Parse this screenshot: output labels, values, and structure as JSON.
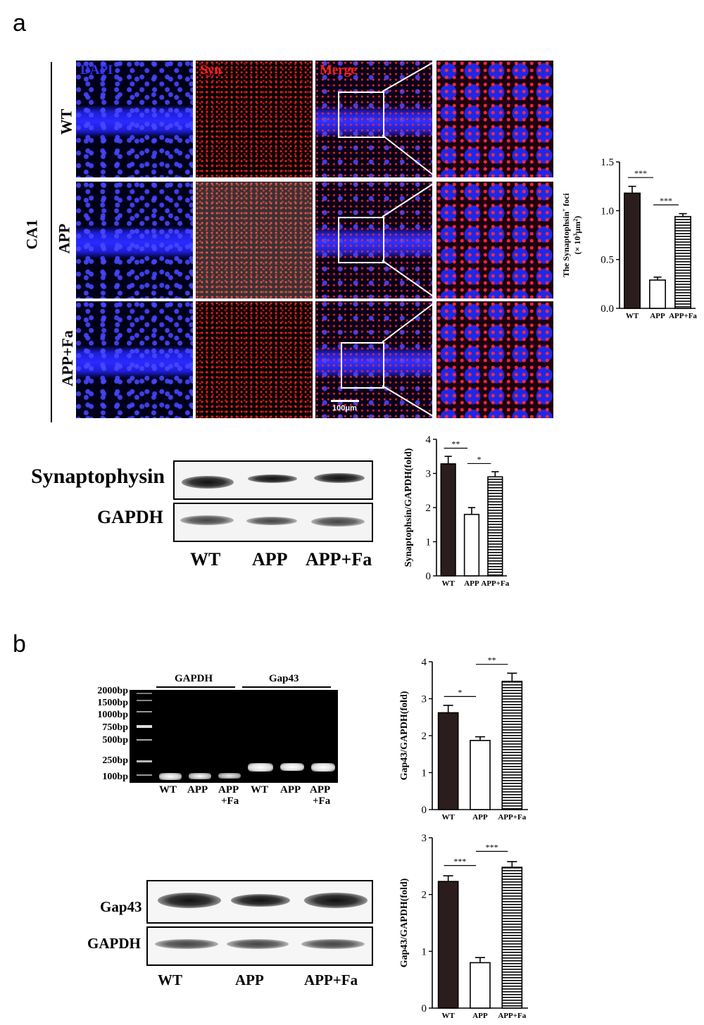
{
  "panel_a": {
    "letter": "a",
    "region": "CA1",
    "columns": [
      "DAPI",
      "Syn",
      "Merge"
    ],
    "rows": [
      "WT",
      "APP",
      "APP+Fa"
    ],
    "scale_bar": "100μm",
    "colors": {
      "dapi": "#3333ff",
      "syn": "#ff2020",
      "merge": "#ff2020"
    },
    "blot": {
      "rows": [
        "Synaptophysin",
        "GAPDH"
      ],
      "lanes": [
        "WT",
        "APP",
        "APP+Fa"
      ]
    }
  },
  "panel_b": {
    "letter": "b",
    "gel": {
      "groups": [
        "GAPDH",
        "Gap43"
      ],
      "ladder": [
        "2000bp",
        "1500bp",
        "1000bp",
        "750bp",
        "500bp",
        "250bp",
        "100bp"
      ],
      "lanes": [
        "WT",
        "APP",
        "APP",
        "WT",
        "APP",
        "APP"
      ],
      "lane_sub": [
        "",
        "",
        "+Fa",
        "",
        "",
        "+Fa"
      ]
    },
    "blot": {
      "rows": [
        "Gap43",
        "GAPDH"
      ],
      "lanes": [
        "WT",
        "APP",
        "APP+Fa"
      ]
    }
  },
  "chart_data": [
    {
      "type": "bar",
      "ylabel_html": "The Synaptophsin⁺ foci (× 10³μm²)",
      "ylabel_1": "The Synaptophsin",
      "ylabel_sup": "+",
      "ylabel_2": " foci",
      "ylabel_3": "(× 10",
      "ylabel_3sup": "3",
      "ylabel_4": "μm",
      "ylabel_4sup": "2",
      "ylabel_5": ")",
      "categories": [
        "WT",
        "APP",
        "APP+Fa"
      ],
      "values": [
        1.18,
        0.29,
        0.94
      ],
      "errors": [
        0.07,
        0.03,
        0.03
      ],
      "ylim": [
        0,
        1.5
      ],
      "yticks": [
        "0.0",
        "0.5",
        "1.0",
        "1.5"
      ],
      "significance": [
        {
          "from": 0,
          "to": 1,
          "label": "***"
        },
        {
          "from": 1,
          "to": 2,
          "label": "***"
        }
      ]
    },
    {
      "type": "bar",
      "ylabel": "Synaptophsin/GAPDH(fold)",
      "categories": [
        "WT",
        "APP",
        "APP+Fa"
      ],
      "values": [
        3.28,
        1.8,
        2.9
      ],
      "errors": [
        0.22,
        0.2,
        0.15
      ],
      "ylim": [
        0,
        4
      ],
      "yticks": [
        "0",
        "1",
        "2",
        "3",
        "4"
      ],
      "significance": [
        {
          "from": 0,
          "to": 1,
          "label": "**"
        },
        {
          "from": 1,
          "to": 2,
          "label": "*"
        }
      ]
    },
    {
      "type": "bar",
      "ylabel": "Gap43/GAPDH(fold)",
      "categories": [
        "WT",
        "APP",
        "APP+Fa"
      ],
      "values": [
        2.62,
        1.87,
        3.47
      ],
      "errors": [
        0.2,
        0.1,
        0.22
      ],
      "ylim": [
        0,
        4
      ],
      "yticks": [
        "0",
        "1",
        "2",
        "3",
        "4"
      ],
      "significance": [
        {
          "from": 0,
          "to": 1,
          "label": "*"
        },
        {
          "from": 1,
          "to": 2,
          "label": "**"
        }
      ]
    },
    {
      "type": "bar",
      "ylabel": "Gap43/GAPDH(fold)",
      "categories": [
        "WT",
        "APP",
        "APP+Fa"
      ],
      "values": [
        2.23,
        0.8,
        2.48
      ],
      "errors": [
        0.1,
        0.09,
        0.1
      ],
      "ylim": [
        0,
        3
      ],
      "yticks": [
        "0",
        "1",
        "2",
        "3"
      ],
      "significance": [
        {
          "from": 0,
          "to": 1,
          "label": "***"
        },
        {
          "from": 1,
          "to": 2,
          "label": "***"
        }
      ]
    }
  ]
}
